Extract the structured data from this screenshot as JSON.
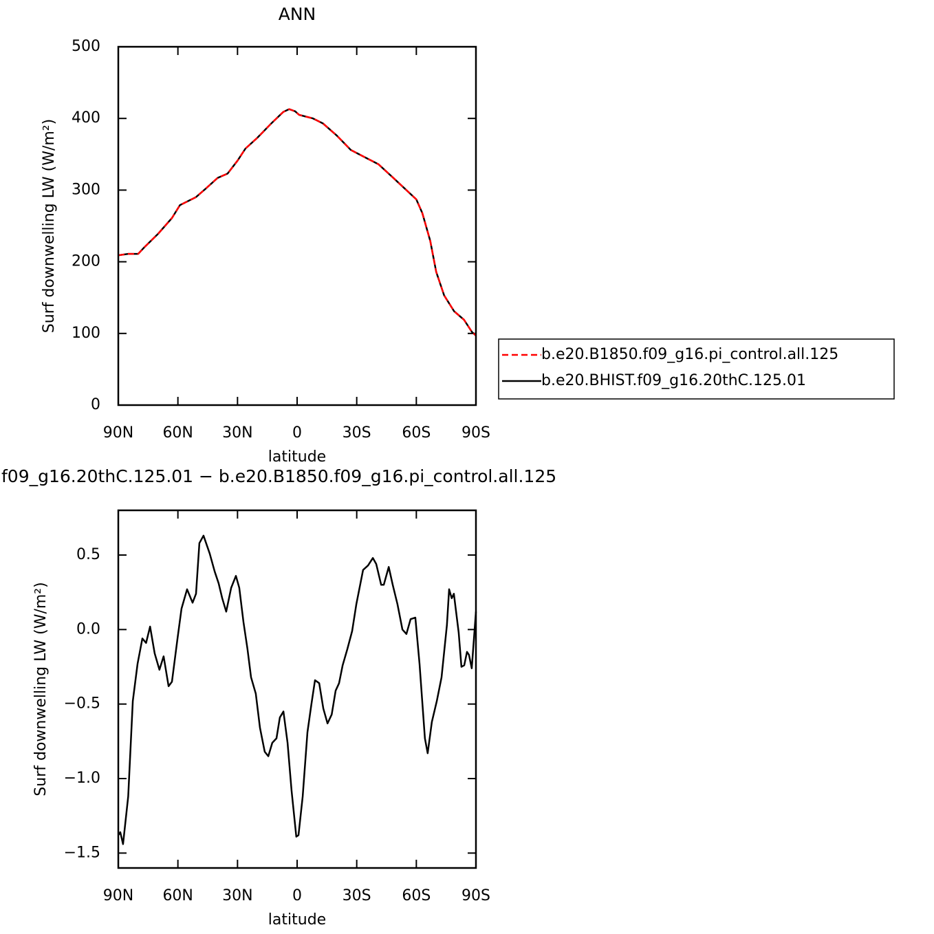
{
  "chart_data": [
    {
      "type": "line",
      "title": "ANN",
      "xlabel": "latitude",
      "ylabel": "Surf downwelling LW (W/m²)",
      "x": [
        90,
        85,
        80,
        77,
        70,
        63,
        59,
        51,
        46,
        40,
        35,
        30,
        26,
        20,
        13,
        7,
        4,
        1,
        -1,
        -8,
        -13,
        -20,
        -27,
        -34,
        -41,
        -48,
        -55,
        -60,
        -63,
        -67,
        -70,
        -74,
        -79,
        -84,
        -88,
        -90
      ],
      "series": [
        {
          "name": "b.e20.B1850.f09_g16.pi_control.all.125",
          "color": "#ff0000",
          "dashed": true,
          "values": [
            209,
            211,
            211,
            220,
            239,
            261,
            279,
            290,
            302,
            317,
            323,
            341,
            358,
            373,
            393,
            409,
            413,
            410,
            405,
            400,
            393,
            376,
            356,
            346,
            336,
            318,
            300,
            287,
            268,
            229,
            186,
            153,
            131,
            119,
            102,
            97
          ]
        },
        {
          "name": "b.e20.BHIST.f09_g16.20thC.125.01",
          "color": "#000000",
          "dashed": false,
          "values": [
            209,
            211,
            211,
            220,
            239,
            261,
            279,
            290,
            302,
            317,
            323,
            341,
            358,
            373,
            393,
            409,
            413,
            410,
            405,
            400,
            393,
            376,
            356,
            346,
            336,
            318,
            300,
            287,
            268,
            229,
            186,
            153,
            131,
            119,
            102,
            97
          ]
        }
      ],
      "xlim": [
        90,
        -90
      ],
      "xticks": [
        {
          "value": 90,
          "label": "90N"
        },
        {
          "value": 60,
          "label": "60N"
        },
        {
          "value": 30,
          "label": "30N"
        },
        0,
        {
          "value": -30,
          "label": "30S"
        },
        {
          "value": -60,
          "label": "60S"
        },
        {
          "value": -90,
          "label": "90S"
        }
      ],
      "ylim": [
        0,
        500
      ],
      "yticks": [
        0,
        100,
        200,
        300,
        400,
        500
      ],
      "legend": "right"
    },
    {
      "type": "line",
      "title": "f09_g16.20thC.125.01 − b.e20.B1850.f09_g16.pi_control.all.125",
      "xlabel": "latitude",
      "ylabel": "Surf downwelling LW (W/m²)",
      "x": [
        90,
        89,
        87.6,
        85,
        82.7,
        80.3,
        77.9,
        76,
        74,
        71.7,
        69.3,
        67.2,
        64.7,
        63,
        60.2,
        58.2,
        55.4,
        52.6,
        50.9,
        49.2,
        47.1,
        44,
        41.5,
        39.5,
        37.7,
        35.7,
        33.2,
        30.8,
        29.1,
        27,
        25,
        23.2,
        20.8,
        18.7,
        16.3,
        14.5,
        12.5,
        10.4,
        8.7,
        6.9,
        4.8,
        2.8,
        0.4,
        -0.7,
        -2.8,
        -5.2,
        -7.2,
        -9,
        -11.1,
        -13.2,
        -15.3,
        -17.4,
        -19.4,
        -21.1,
        -22.9,
        -25.3,
        -27.7,
        -29.8,
        -33.2,
        -35.7,
        -38.1,
        -39.8,
        -42.3,
        -43.6,
        -46.1,
        -48.1,
        -50.5,
        -53,
        -55,
        -57.1,
        -59.5,
        -61.6,
        -64.3,
        -65.7,
        -67.8,
        -70.3,
        -72.7,
        -75.4,
        -76.5,
        -77.8,
        -78.9,
        -81.3,
        -82.7,
        -84.1,
        -85.5,
        -86.5,
        -87.9,
        -90
      ],
      "values": [
        -1.38,
        -1.36,
        -1.44,
        -1.12,
        -0.48,
        -0.23,
        -0.06,
        -0.09,
        0.02,
        -0.16,
        -0.27,
        -0.18,
        -0.38,
        -0.35,
        -0.06,
        0.14,
        0.27,
        0.18,
        0.24,
        0.58,
        0.63,
        0.51,
        0.39,
        0.31,
        0.21,
        0.12,
        0.28,
        0.36,
        0.28,
        0.05,
        -0.13,
        -0.32,
        -0.43,
        -0.66,
        -0.82,
        -0.85,
        -0.76,
        -0.73,
        -0.59,
        -0.55,
        -0.76,
        -1.08,
        -1.39,
        -1.38,
        -1.12,
        -0.69,
        -0.5,
        -0.34,
        -0.36,
        -0.53,
        -0.63,
        -0.57,
        -0.41,
        -0.36,
        -0.24,
        -0.13,
        -0.01,
        0.17,
        0.4,
        0.43,
        0.48,
        0.44,
        0.3,
        0.3,
        0.42,
        0.3,
        0.17,
        0,
        -0.03,
        0.07,
        0.08,
        -0.23,
        -0.73,
        -0.83,
        -0.62,
        -0.48,
        -0.32,
        0.03,
        0.27,
        0.21,
        0.24,
        -0.02,
        -0.25,
        -0.24,
        -0.15,
        -0.17,
        -0.26,
        0.12
      ],
      "color": "#000000",
      "xlim": [
        90,
        -90
      ],
      "xticks": [
        {
          "value": 90,
          "label": "90N"
        },
        {
          "value": 60,
          "label": "60N"
        },
        {
          "value": 30,
          "label": "30N"
        },
        0,
        {
          "value": -30,
          "label": "30S"
        },
        {
          "value": -60,
          "label": "60S"
        },
        {
          "value": -90,
          "label": "90S"
        }
      ],
      "ylim": [
        -1.6,
        0.8
      ],
      "yticks": [
        {
          "value": -1.5,
          "label": "−1.5"
        },
        {
          "value": -1,
          "label": "−1.0"
        },
        {
          "value": -0.5,
          "label": "−0.5"
        },
        {
          "value": 0,
          "label": "0.0"
        },
        0.5
      ]
    }
  ]
}
